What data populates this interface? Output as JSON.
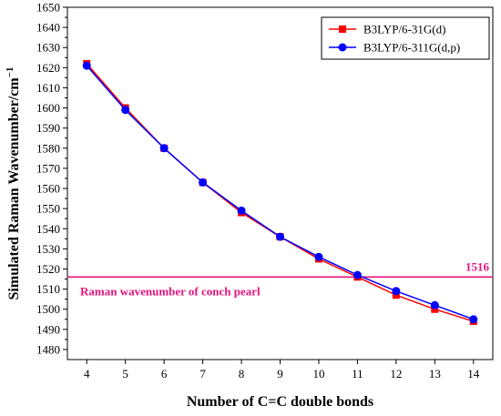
{
  "chart_data": {
    "type": "line",
    "xlabel": "Number of C=C double bonds",
    "ylabel": "Simulated Raman Wavenumber/cm",
    "ylabel_superscript": "−1",
    "x": [
      4,
      5,
      6,
      7,
      8,
      9,
      10,
      11,
      12,
      13,
      14
    ],
    "xlim": [
      3.5,
      14.5
    ],
    "ylim": [
      1475,
      1650
    ],
    "xticks": [
      4,
      5,
      6,
      7,
      8,
      9,
      10,
      11,
      12,
      13,
      14
    ],
    "yticks": [
      1480,
      1490,
      1500,
      1510,
      1520,
      1530,
      1540,
      1550,
      1560,
      1570,
      1580,
      1590,
      1600,
      1610,
      1620,
      1630,
      1640,
      1650
    ],
    "grid": false,
    "legend_position": "top-right",
    "series": [
      {
        "name": "B3LYP/6-31G(d)",
        "color": "#ff0000",
        "marker": "square",
        "values": [
          1622,
          1600,
          1580,
          1563,
          1548,
          1536,
          1525,
          1516,
          1507,
          1500,
          1494
        ]
      },
      {
        "name": "B3LYP/6-311G(d,p)",
        "color": "#0000ff",
        "marker": "circle",
        "values": [
          1621,
          1599,
          1580,
          1563,
          1549,
          1536,
          1526,
          1517,
          1509,
          1502,
          1495
        ]
      }
    ],
    "reference_line": {
      "y": 1516,
      "value_label": "1516",
      "text": "Raman wavenumber of conch pearl",
      "color": "#e6127e"
    }
  }
}
